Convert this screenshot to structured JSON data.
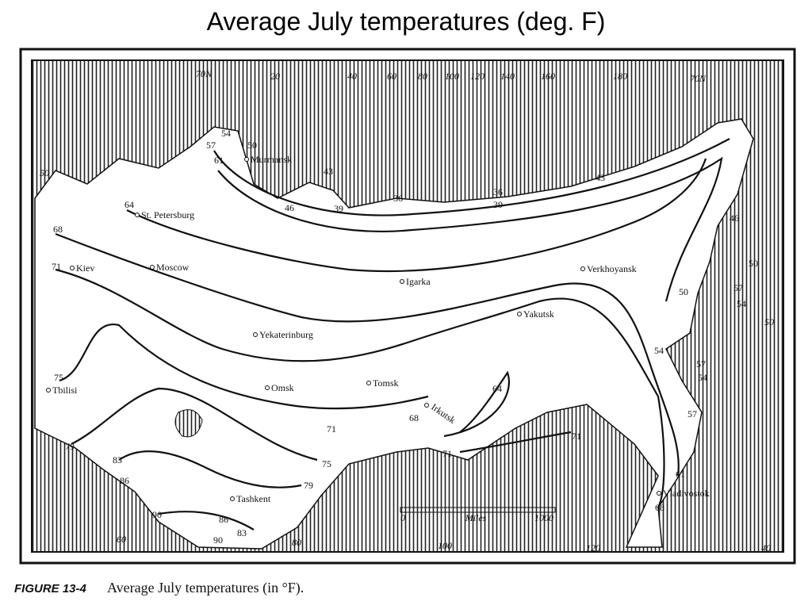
{
  "title": "Average July temperatures (deg. F)",
  "map": {
    "longitude_labels": [
      "70N",
      "20",
      "40",
      "60",
      "80",
      "100",
      "120",
      "140",
      "160",
      "180",
      "70N",
      "60",
      "80",
      "100",
      "120",
      "40",
      "50",
      "50"
    ],
    "cities": [
      "Murmansk",
      "St. Petersburg",
      "Moscow",
      "Kiev",
      "Igarka",
      "Verkhoyansk",
      "Yakutsk",
      "Yekaterinburg",
      "Omsk",
      "Tomsk",
      "Irkutsk",
      "Tbilisi",
      "Tashkent",
      "Vladivostok"
    ],
    "isotherm_labels": [
      "54",
      "57",
      "50",
      "61",
      "43",
      "64",
      "46",
      "39",
      "36",
      "36",
      "39",
      "43",
      "46",
      "68",
      "71",
      "50",
      "57",
      "54",
      "50",
      "54",
      "57",
      "54",
      "57",
      "75",
      "64",
      "68",
      "71",
      "71",
      "71",
      "79",
      "83",
      "86",
      "75",
      "79",
      "61",
      "68",
      "90",
      "86",
      "90",
      "83"
    ],
    "scale": {
      "start": "0",
      "label": "Miles",
      "end": "1000"
    }
  },
  "caption": {
    "figure": "FIGURE 13-4",
    "text": "Average July temperatures (in °F)."
  }
}
